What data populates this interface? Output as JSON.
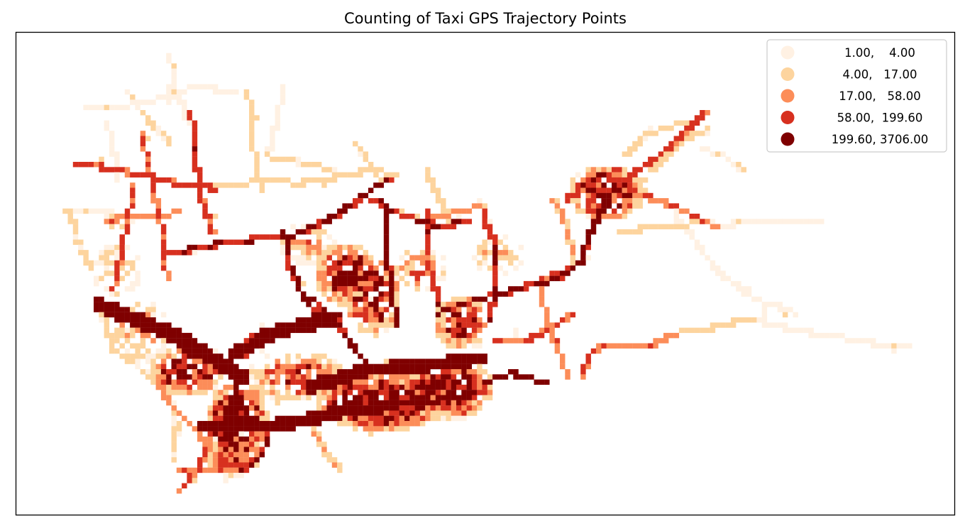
{
  "title": "Counting of Taxi GPS Trajectory Points",
  "map": {
    "type": "choropleth-grid",
    "axes_visible": false,
    "frame": true,
    "colormap": "OrRd"
  },
  "legend": {
    "placement": "top-right",
    "classes": [
      {
        "label": "1.00,    4.00",
        "lower": 1.0,
        "upper": 4.0,
        "color": "#fff1e3"
      },
      {
        "label": "4.00,   17.00",
        "lower": 4.0,
        "upper": 17.0,
        "color": "#fdd49e"
      },
      {
        "label": "17.00,   58.00",
        "lower": 17.0,
        "upper": 58.0,
        "color": "#fc8d59"
      },
      {
        "label": "58.00,  199.60",
        "lower": 58.0,
        "upper": 199.6,
        "color": "#d7301f"
      },
      {
        "label": "199.60, 3706.00",
        "lower": 199.6,
        "upper": 3706.0,
        "color": "#7f0000"
      }
    ]
  }
}
